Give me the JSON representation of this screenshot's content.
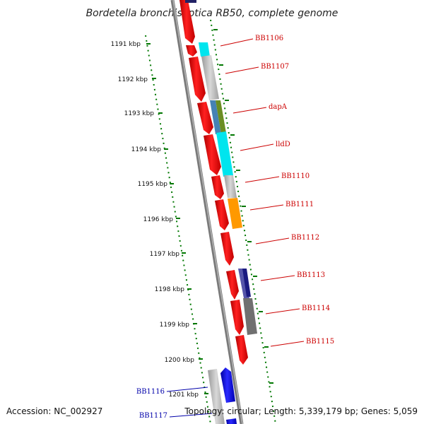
{
  "title": "Bordetella bronchiseptica RB50, complete genome",
  "accession_text": "Accession: NC_002927",
  "summary_text": "Topology: circular; Length: 5,339,179 bp; Genes: 5,059",
  "ticks": [
    "1191 kbp",
    "1192 kbp",
    "1193 kbp",
    "1194 kbp",
    "1195 kbp",
    "1196 kbp",
    "1197 kbp",
    "1198 kbp",
    "1199 kbp",
    "1200 kbp",
    "1201 kbp"
  ],
  "gene_labels": [
    {
      "text": "BB1106",
      "color": "#cc0000"
    },
    {
      "text": "BB1107",
      "color": "#cc0000"
    },
    {
      "text": "dapA",
      "color": "#cc0000"
    },
    {
      "text": "lldD",
      "color": "#cc0000"
    },
    {
      "text": "BB1110",
      "color": "#cc0000"
    },
    {
      "text": "BB1111",
      "color": "#cc0000"
    },
    {
      "text": "BB1112",
      "color": "#cc0000"
    },
    {
      "text": "BB1113",
      "color": "#cc0000"
    },
    {
      "text": "BB1114",
      "color": "#cc0000"
    },
    {
      "text": "BB1115",
      "color": "#cc0000"
    },
    {
      "text": "BB1116",
      "color": "#0000aa"
    },
    {
      "text": "BB1117",
      "color": "#0000aa"
    }
  ],
  "colors": {
    "forward_gene": "#ff0000",
    "reverse_gene": "#0000ee",
    "cog_cyan": "#00e5ee",
    "cog_gray": "#c0c0c0",
    "cog_olive": "#6b8e23",
    "cog_steelblue": "#4682b4",
    "cog_orange": "#ff9900",
    "cog_navy": "#1a1a80",
    "cog_darkgray": "#707070",
    "backbone": "#808080",
    "tick": "#007700"
  }
}
